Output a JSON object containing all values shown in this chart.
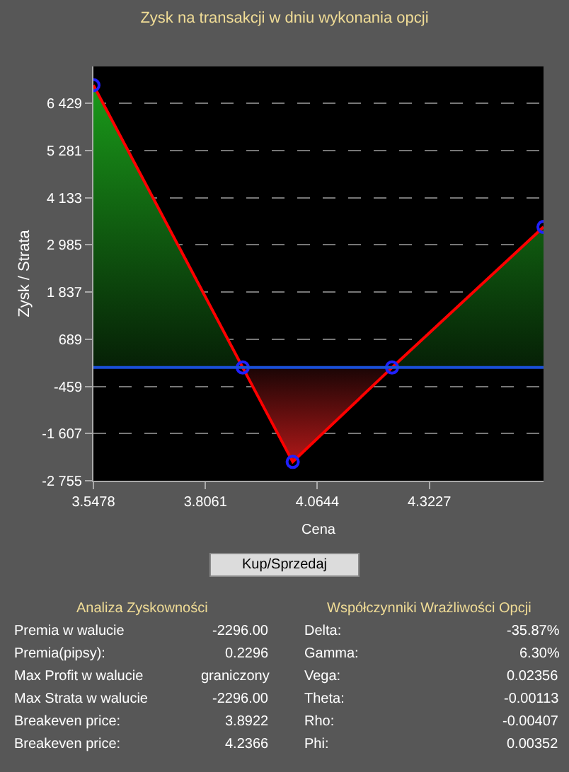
{
  "chart_data": {
    "type": "area",
    "title": "Zysk na transakcji w dniu wykonania opcji",
    "xlabel": "Cena",
    "ylabel": "Zysk / Strata",
    "x": [
      3.5478,
      3.8922,
      4.0075,
      4.2366,
      4.586
    ],
    "series": [
      {
        "color": "#ff0000",
        "values": [
          6870,
          0,
          -2296,
          0,
          3420
        ]
      }
    ],
    "marker": "circle",
    "line_style": "solid",
    "grid": "y",
    "xlim": [
      3.5478,
      4.586
    ],
    "xticks": [
      3.5478,
      3.8061,
      4.0644,
      4.3227
    ],
    "ylim": [
      -2755,
      7325
    ],
    "yticks": [
      {
        "value": -2755,
        "label": "-2 755"
      },
      {
        "value": -1607,
        "label": "-1 607"
      },
      -459,
      689,
      {
        "value": 1837,
        "label": "1 837"
      },
      {
        "value": 2985,
        "label": "2 985"
      },
      {
        "value": 4133,
        "label": "4 133"
      },
      {
        "value": 5281,
        "label": "5 281"
      },
      {
        "value": 6429,
        "label": "6 429"
      }
    ],
    "ref_lines": [
      {
        "axis": "y",
        "value": 0,
        "color": "#1a4fd8"
      }
    ],
    "annotations": [
      "Kup/Sprzedaj",
      "Analiza Zyskowności",
      "Współczynniki Wrażliwości Opcji",
      "Premia w walucie",
      "-2296.00",
      "Delta:",
      "-35.87%",
      "Premia(pipsy):",
      "0.2296",
      "Gamma:",
      "6.30%",
      "Max Profit w walucie",
      "graniczony",
      "Vega:",
      "0.02356",
      "Max Strata w walucie",
      "-2296.00",
      "Theta:",
      "-0.00113",
      "Breakeven price:",
      "3.8922",
      "Rho:",
      "-0.00407",
      "Breakeven price:",
      "4.2366",
      "Phi:",
      "0.00352"
    ]
  }
}
